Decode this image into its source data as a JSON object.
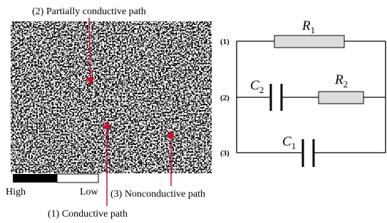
{
  "labels": {
    "partial": "(2) Partially conductive path",
    "conductive": "(1) Conductive path",
    "nonconductive": "(3) Nonconductive path"
  },
  "scale": {
    "high": "High",
    "low": "Low"
  },
  "circuit": {
    "branches": [
      "(1)",
      "(2)",
      "(3)"
    ],
    "R1": {
      "symbol": "R",
      "subscript": "1"
    },
    "C2": {
      "symbol": "C",
      "subscript": "2"
    },
    "R2": {
      "symbol": "R",
      "subscript": "2"
    },
    "C1": {
      "symbol": "C",
      "subscript": "1"
    }
  }
}
